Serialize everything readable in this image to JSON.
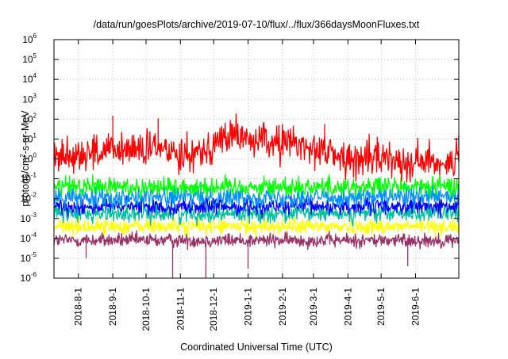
{
  "chart_data": {
    "type": "line",
    "title": "/data/run/goesPlots/archive/2019-07-10/flux/../flux/366daysMoonFluxes.txt",
    "xlabel": "Coordinated Universal Time (UTC)",
    "ylabel": "protons/cm²-s-sr-MeV",
    "ylabel_parts": {
      "base": "protons/cm",
      "sup": "2",
      "rest": "-s-sr-MeV"
    },
    "yscale": "log",
    "ylim": [
      1e-06,
      1000000.0
    ],
    "xlim": [
      "2018-07-10",
      "2019-07-10"
    ],
    "grid": true,
    "legend": "none",
    "y_ticks": [
      {
        "base": "10",
        "exp": "-6"
      },
      {
        "base": "10",
        "exp": "-5"
      },
      {
        "base": "10",
        "exp": "-4"
      },
      {
        "base": "10",
        "exp": "-3"
      },
      {
        "base": "10",
        "exp": "-2"
      },
      {
        "base": "10",
        "exp": "-1"
      },
      {
        "base": "10",
        "exp": "0"
      },
      {
        "base": "10",
        "exp": "1"
      },
      {
        "base": "10",
        "exp": "2"
      },
      {
        "base": "10",
        "exp": "3"
      },
      {
        "base": "10",
        "exp": "4"
      },
      {
        "base": "10",
        "exp": "5"
      },
      {
        "base": "10",
        "exp": "6"
      }
    ],
    "x_ticks": [
      {
        "date": "2018-08-01",
        "label": "2018-8-1"
      },
      {
        "date": "2018-09-01",
        "label": "2018-9-1"
      },
      {
        "date": "2018-10-01",
        "label": "2018-10-1"
      },
      {
        "date": "2018-11-01",
        "label": "2018-11-1"
      },
      {
        "date": "2018-12-01",
        "label": "2018-12-1"
      },
      {
        "date": "2019-01-01",
        "label": "2019-1-1"
      },
      {
        "date": "2019-02-01",
        "label": "2019-2-1"
      },
      {
        "date": "2019-03-01",
        "label": "2019-3-1"
      },
      {
        "date": "2019-04-01",
        "label": "2019-4-1"
      },
      {
        "date": "2019-05-01",
        "label": "2019-5-1"
      },
      {
        "date": "2019-06-01",
        "label": "2019-6-1"
      }
    ],
    "series": [
      {
        "color": "#993366",
        "base": 8e-05,
        "spread": 0.18,
        "dips": [
          {
            "date": "2018-08-08",
            "value": 1e-05
          },
          {
            "date": "2018-10-25",
            "value": 1e-06
          },
          {
            "date": "2018-11-24",
            "value": 1e-06
          },
          {
            "date": "2019-01-01",
            "value": 3e-06
          },
          {
            "date": "2019-05-25",
            "value": 4e-06
          }
        ]
      },
      {
        "color": "#ffff00",
        "base": 0.0004,
        "spread": 0.2,
        "dips": []
      },
      {
        "color": "#00c0a0",
        "base": 0.0018,
        "spread": 0.22,
        "dips": []
      },
      {
        "color": "#0000ff",
        "base": 0.004,
        "spread": 0.2,
        "dips": []
      },
      {
        "color": "#0090ff",
        "base": 0.012,
        "spread": 0.25,
        "dips": []
      },
      {
        "color": "#00ff00",
        "base": 0.04,
        "spread": 0.25,
        "dips": []
      },
      {
        "color": "#ff0000",
        "profile": [
          {
            "date": "2018-07-10",
            "value": 1.5
          },
          {
            "date": "2018-08-15",
            "value": 2
          },
          {
            "date": "2018-09-15",
            "value": 3
          },
          {
            "date": "2018-10-15",
            "value": 3
          },
          {
            "date": "2018-11-15",
            "value": 2
          },
          {
            "date": "2018-12-15",
            "value": 15
          },
          {
            "date": "2019-01-10",
            "value": 8
          },
          {
            "date": "2019-02-10",
            "value": 6
          },
          {
            "date": "2019-03-10",
            "value": 3
          },
          {
            "date": "2019-04-01",
            "value": 0.8
          },
          {
            "date": "2019-05-01",
            "value": 1.2
          },
          {
            "date": "2019-06-01",
            "value": 0.7
          },
          {
            "date": "2019-07-10",
            "value": 0.8
          }
        ],
        "spread": 0.45,
        "spikes": [
          {
            "date": "2018-09-01",
            "value": 150
          },
          {
            "date": "2018-10-12",
            "value": 110
          },
          {
            "date": "2018-12-17",
            "value": 60
          },
          {
            "date": "2019-01-29",
            "value": 50
          },
          {
            "date": "2019-03-11",
            "value": 55
          },
          {
            "date": "2019-07-10",
            "value": 15
          }
        ]
      }
    ]
  }
}
